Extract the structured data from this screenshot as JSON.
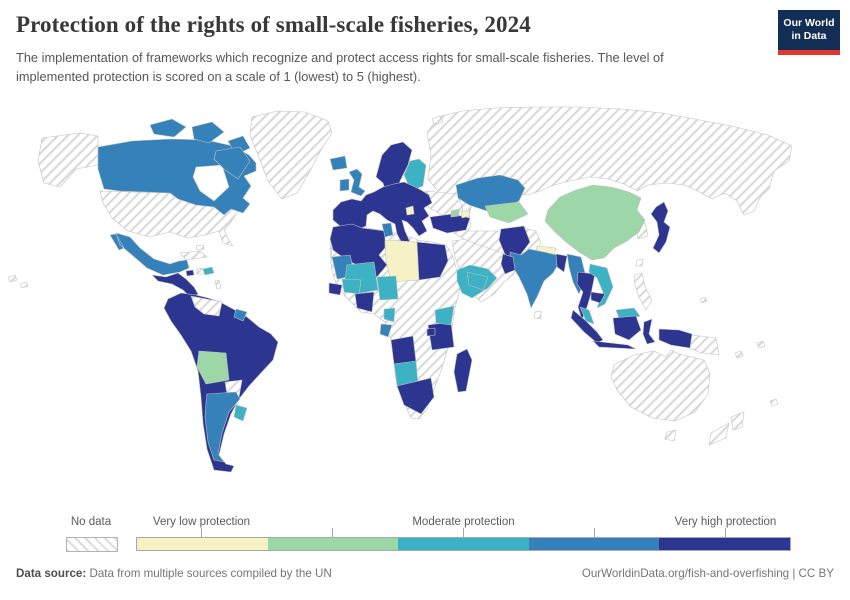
{
  "header": {
    "title": "Protection of the rights of small-scale fisheries, 2024",
    "subtitle": "The implementation of frameworks which recognize and protect access rights for small-scale fisheries. The level of implemented protection is scored on a scale of 1 (lowest) to 5 (highest)."
  },
  "logo": {
    "line1": "Our World",
    "line2": "in Data",
    "bg_color": "#132e54",
    "accent_color": "#e0372e"
  },
  "legend": {
    "no_data_label": "No data",
    "labels": [
      {
        "text": "Very low protection"
      },
      {
        "text": "Moderate protection"
      },
      {
        "text": "Very high protection"
      }
    ],
    "colors": [
      "#f6f2c5",
      "#9ed7a7",
      "#3eb2c5",
      "#3581b9",
      "#2c3690"
    ],
    "hatch_color": "#d8d8d8",
    "border_color": "#c2c2c2"
  },
  "footer": {
    "source_label": "Data source:",
    "source_text": " Data from multiple sources compiled by the UN",
    "link_text": "OurWorldinData.org/fish-and-overfishing | CC BY"
  },
  "chart_data": {
    "type": "heatmap",
    "subtype": "choropleth-world-map",
    "title": "Protection of the rights of small-scale fisheries, 2024",
    "year": "2024",
    "scale_levels": [
      1,
      2,
      3,
      4,
      5
    ],
    "scale_min_label": "Very low protection",
    "scale_mid_label": "Moderate protection",
    "scale_max_label": "Very high protection",
    "no_data_label": "No data",
    "values": {
      "canada": 4,
      "canada-arctic-1": 4,
      "canada-arctic-2": 4,
      "canada-arctic-3": 4,
      "canada-baffin": 4,
      "alaska": "no-data",
      "usa": "no-data",
      "greenland": "no-data",
      "mexico": 4,
      "central-america": 5,
      "cuba": "no-data",
      "haiti": "no-data",
      "jamaica": 5,
      "dominican-republic": 3,
      "bahamas": "no-data",
      "lesser-antilles": "no-data",
      "hawaii-1": "no-data",
      "hawaii-2": "no-data",
      "south-america": 5,
      "venezuela": "no-data",
      "suriname": 4,
      "bolivia": 2,
      "paraguay": "no-data",
      "argentina": 4,
      "uruguay": 3,
      "iceland": 4,
      "uk": 4,
      "ireland": 4,
      "scandinavia": 5,
      "finland": 3,
      "denmark": 5,
      "europe": 5,
      "albania": 1,
      "ukraine": "no-data",
      "turkey": 5,
      "svalbard": "no-data",
      "russia": "no-data",
      "west-asia": "no-data",
      "kazakhstan": 4,
      "uzbekistan": 2,
      "georgia": 2,
      "azerbaijan": 1,
      "china": 2,
      "korea": "no-data",
      "japan": 5,
      "taiwan": "no-data",
      "pakistan": 5,
      "nepal": 1,
      "india": 4,
      "sri-lanka": "no-data",
      "bangladesh": 5,
      "myanmar": 4,
      "thailand": 5,
      "vietnam": 3,
      "cambodia": 5,
      "malaysia": 3,
      "sumatra-indonesia": 5,
      "java-indonesia": 5,
      "borneo-malaysia": 3,
      "borneo-indonesia": 5,
      "sulawesi-indonesia": 5,
      "west-new-guinea-indonesia": 5,
      "philippines": "no-data",
      "papua-new-guinea": "no-data",
      "australia": "no-data",
      "tasmania": "no-data",
      "new-zealand-north": "no-data",
      "new-zealand-south": "no-data",
      "pacific-islands-1": "no-data",
      "pacific-islands-2": "no-data",
      "pacific-islands-3": "no-data",
      "pacific-islands-4": "no-data",
      "africa-interior": "no-data",
      "western-sahara": "no-data",
      "arabia": "no-data",
      "morocco-algeria": 5,
      "tunisia": 4,
      "libya": 1,
      "egypt": 5,
      "mauritania": 4,
      "mali": 3,
      "senegal": 5,
      "guinea": 3,
      "ivory-coast-ghana": 5,
      "nigeria": 3,
      "cameroon": 3,
      "gabon": 4,
      "angola": 5,
      "namibia": 3,
      "south-africa": 5,
      "tanzania": 5,
      "kenya": 3,
      "uganda": 5,
      "horn-of-africa": 3,
      "madagascar": 5,
      "yemen": 3,
      "oman": 5
    }
  }
}
